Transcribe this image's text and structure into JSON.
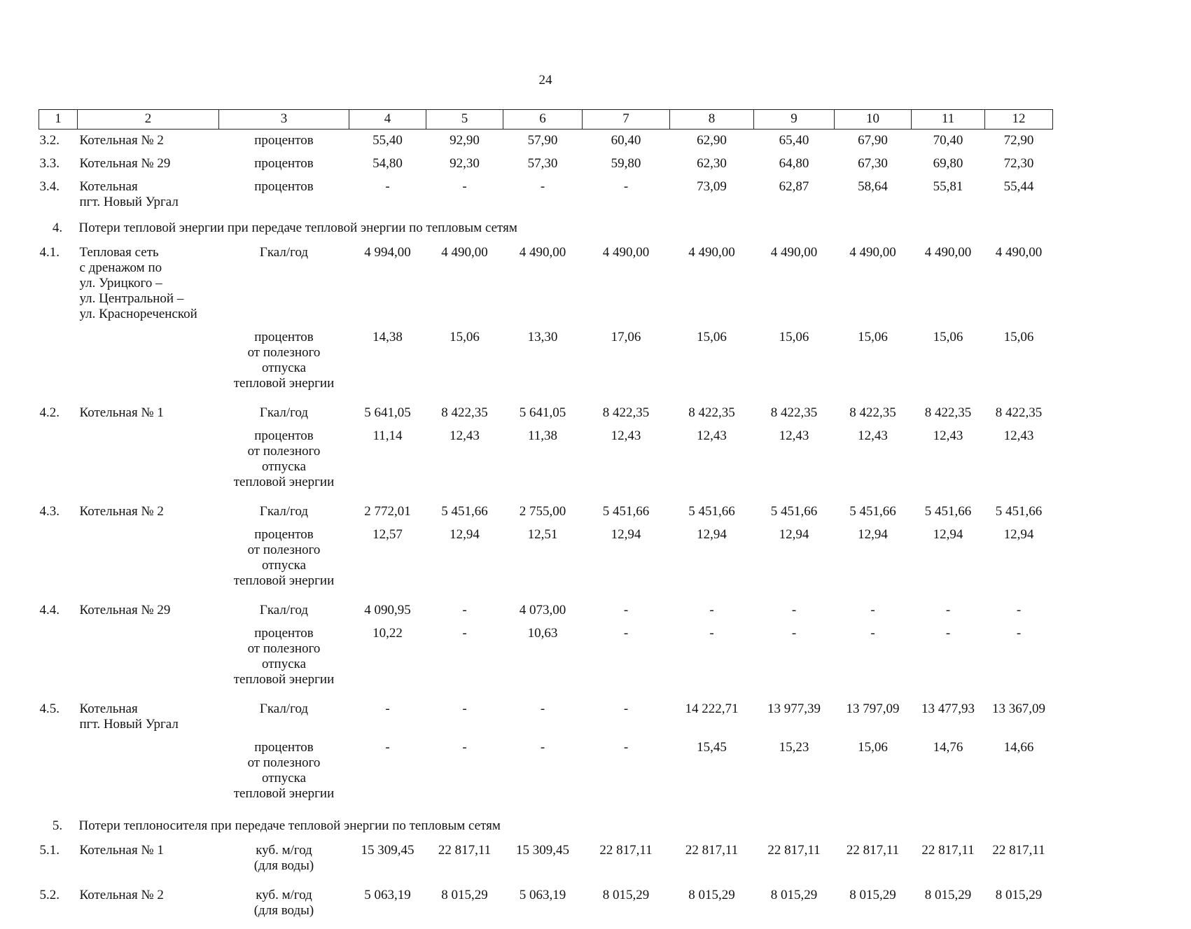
{
  "page": {
    "number": "24"
  },
  "table": {
    "header": [
      "1",
      "2",
      "3",
      "4",
      "5",
      "6",
      "7",
      "8",
      "9",
      "10",
      "11",
      "12"
    ],
    "rows": [
      {
        "type": "data",
        "num": "3.2.",
        "name": "Котельная № 2",
        "unit": "процентов",
        "values": [
          "55,40",
          "92,90",
          "57,90",
          "60,40",
          "62,90",
          "65,40",
          "67,90",
          "70,40",
          "72,90"
        ]
      },
      {
        "type": "data",
        "num": "3.3.",
        "name": "Котельная № 29",
        "unit": "процентов",
        "values": [
          "54,80",
          "92,30",
          "57,30",
          "59,80",
          "62,30",
          "64,80",
          "67,30",
          "69,80",
          "72,30"
        ]
      },
      {
        "type": "data",
        "num": "3.4.",
        "name": "Котельная\nпгт. Новый Ургал",
        "unit": "процентов",
        "values": [
          "-",
          "-",
          "-",
          "-",
          "73,09",
          "62,87",
          "58,64",
          "55,81",
          "55,44"
        ]
      },
      {
        "type": "section",
        "num": "4.",
        "title": "Потери тепловой энергии при передаче тепловой энергии по тепловым сетям"
      },
      {
        "type": "data",
        "num": "4.1.",
        "name": "Тепловая сеть\nс дренажом по\nул. Урицкого –\nул. Центральной –\nул. Краснореченской",
        "unit": "Гкал/год",
        "values": [
          "4 994,00",
          "4 490,00",
          "4 490,00",
          "4 490,00",
          "4 490,00",
          "4 490,00",
          "4 490,00",
          "4 490,00",
          "4 490,00"
        ]
      },
      {
        "type": "data",
        "num": "",
        "name": "",
        "unit": "процентов\nот полезного\nотпуска\nтепловой энергии",
        "values": [
          "14,38",
          "15,06",
          "13,30",
          "17,06",
          "15,06",
          "15,06",
          "15,06",
          "15,06",
          "15,06"
        ]
      },
      {
        "type": "data",
        "num": "4.2.",
        "name": "Котельная № 1",
        "unit": "Гкал/год",
        "values": [
          "5 641,05",
          "8 422,35",
          "5 641,05",
          "8 422,35",
          "8 422,35",
          "8 422,35",
          "8 422,35",
          "8 422,35",
          "8 422,35"
        ]
      },
      {
        "type": "data",
        "num": "",
        "name": "",
        "unit": "процентов\nот полезного\nотпуска\nтепловой энергии",
        "values": [
          "11,14",
          "12,43",
          "11,38",
          "12,43",
          "12,43",
          "12,43",
          "12,43",
          "12,43",
          "12,43"
        ]
      },
      {
        "type": "data",
        "num": "4.3.",
        "name": "Котельная № 2",
        "unit": "Гкал/год",
        "values": [
          "2 772,01",
          "5 451,66",
          "2 755,00",
          "5 451,66",
          "5 451,66",
          "5 451,66",
          "5 451,66",
          "5 451,66",
          "5 451,66"
        ]
      },
      {
        "type": "data",
        "num": "",
        "name": "",
        "unit": "процентов\nот полезного\nотпуска\nтепловой энергии",
        "values": [
          "12,57",
          "12,94",
          "12,51",
          "12,94",
          "12,94",
          "12,94",
          "12,94",
          "12,94",
          "12,94"
        ]
      },
      {
        "type": "data",
        "num": "4.4.",
        "name": "Котельная № 29",
        "unit": "Гкал/год",
        "values": [
          "4 090,95",
          "-",
          "4 073,00",
          "-",
          "-",
          "-",
          "-",
          "-",
          "-"
        ]
      },
      {
        "type": "data",
        "num": "",
        "name": "",
        "unit": "процентов\nот полезного\nотпуска\nтепловой энергии",
        "values": [
          "10,22",
          "-",
          "10,63",
          "-",
          "-",
          "-",
          "-",
          "-",
          "-"
        ]
      },
      {
        "type": "data",
        "num": "4.5.",
        "name": "Котельная\nпгт. Новый Ургал",
        "unit": "Гкал/год",
        "values": [
          "-",
          "-",
          "-",
          "-",
          "14 222,71",
          "13 977,39",
          "13 797,09",
          "13 477,93",
          "13 367,09"
        ]
      },
      {
        "type": "data",
        "num": "",
        "name": "",
        "unit": "процентов\nот полезного\nотпуска\nтепловой энергии",
        "values": [
          "-",
          "-",
          "-",
          "-",
          "15,45",
          "15,23",
          "15,06",
          "14,76",
          "14,66"
        ]
      },
      {
        "type": "section",
        "num": "5.",
        "title": "Потери теплоносителя при передаче тепловой энергии по тепловым сетям"
      },
      {
        "type": "data",
        "num": "5.1.",
        "name": "Котельная № 1",
        "unit": "куб. м/год\n(для воды)",
        "values": [
          "15 309,45",
          "22 817,11",
          "15 309,45",
          "22 817,11",
          "22 817,11",
          "22 817,11",
          "22 817,11",
          "22 817,11",
          "22 817,11"
        ]
      },
      {
        "type": "data",
        "num": "5.2.",
        "name": "Котельная № 2",
        "unit": "куб. м/год\n(для воды)",
        "values": [
          "5 063,19",
          "8 015,29",
          "5 063,19",
          "8 015,29",
          "8 015,29",
          "8 015,29",
          "8 015,29",
          "8 015,29",
          "8 015,29"
        ]
      }
    ]
  }
}
